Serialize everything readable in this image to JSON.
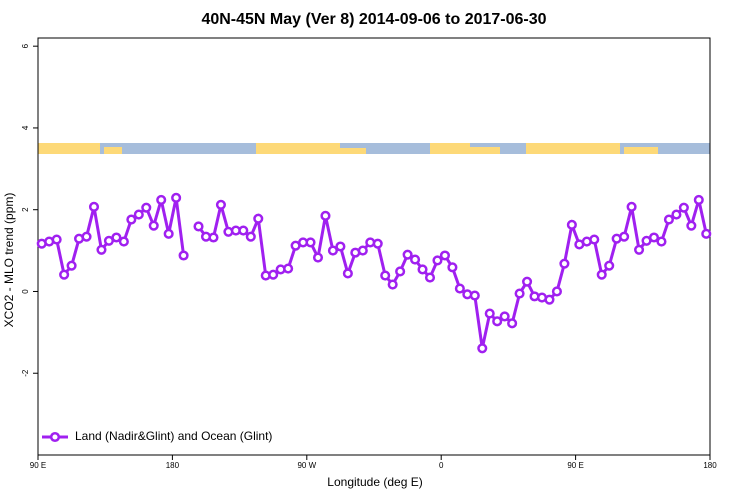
{
  "chart_data": {
    "type": "line",
    "title": "40N-45N May (Ver 8)   2014-09-06 to 2017-06-30",
    "x_label": "Longitude (deg E)",
    "y_label": "XCO2 - MLO trend (ppm)",
    "x": [
      92.5,
      97.5,
      102.5,
      107.5,
      112.5,
      117.5,
      122.5,
      127.5,
      132.5,
      137.5,
      142.5,
      147.5,
      152.5,
      157.5,
      162.5,
      167.5,
      172.5,
      177.5,
      182.5,
      187.5,
      192.5,
      197.5,
      202.5,
      207.5,
      212.5,
      217.5,
      222.5,
      227.5,
      232.5,
      237.5,
      242.5,
      247.5,
      252.5,
      257.5,
      262.5,
      267.5,
      272.5,
      277.5,
      282.5,
      287.5,
      292.5,
      297.5,
      302.5,
      307.5,
      312.5,
      317.5,
      322.5,
      327.5,
      332.5,
      337.5,
      342.5,
      347.5,
      352.5,
      357.5,
      362.5,
      367.5,
      372.5,
      377.5,
      382.5,
      387.5,
      392.5,
      397.5,
      402.5,
      407.5,
      412.5,
      417.5,
      422.5,
      427.5,
      432.5,
      437.5,
      442.5,
      447.5,
      452.5,
      457.5,
      462.5,
      467.5,
      472.5,
      477.5,
      482.5,
      487.5,
      492.5,
      497.5,
      502.5,
      507.5,
      512.5,
      517.5,
      522.5,
      527.5,
      532.5,
      537.5
    ],
    "series": [
      {
        "name": "Land (Nadir&Glint) and Ocean (Glint)",
        "color": "#a020f0",
        "values": [
          1.17,
          1.22,
          1.27,
          0.41,
          0.63,
          1.29,
          1.34,
          2.07,
          1.02,
          1.24,
          1.32,
          1.22,
          1.76,
          1.88,
          2.05,
          1.61,
          2.24,
          1.41,
          2.29,
          0.88,
          null,
          1.59,
          1.34,
          1.32,
          2.12,
          1.46,
          1.49,
          1.49,
          1.34,
          1.78,
          0.39,
          0.41,
          0.54,
          0.56,
          1.12,
          1.2,
          1.2,
          0.83,
          1.85,
          1.0,
          1.1,
          0.44,
          0.95,
          1.0,
          1.2,
          1.17,
          0.39,
          0.17,
          0.49,
          0.9,
          0.78,
          0.54,
          0.34,
          0.76,
          0.88,
          0.59,
          0.07,
          -0.07,
          -0.1,
          -1.39,
          -0.54,
          -0.73,
          -0.61,
          -0.78,
          -0.05,
          0.24,
          -0.12,
          -0.15,
          -0.2,
          0.0,
          0.68,
          1.63,
          1.15,
          1.22,
          1.27,
          0.41,
          0.63,
          1.29,
          1.34,
          2.07,
          1.02,
          1.24,
          1.32,
          1.22,
          1.76,
          1.88,
          2.05,
          1.61,
          2.24,
          1.41
        ]
      }
    ],
    "xlim": [
      90,
      540
    ],
    "xticks": [
      {
        "value": 90,
        "label": "90 E"
      },
      180,
      {
        "value": 270,
        "label": "90 W"
      },
      {
        "value": 360,
        "label": "0"
      },
      {
        "value": 450,
        "label": "90 E"
      },
      {
        "value": 540,
        "label": "180"
      }
    ],
    "ylim": [
      -4,
      6.2
    ],
    "yticks": [
      -2,
      0,
      2,
      4,
      6
    ],
    "legend": "bottom-left"
  }
}
